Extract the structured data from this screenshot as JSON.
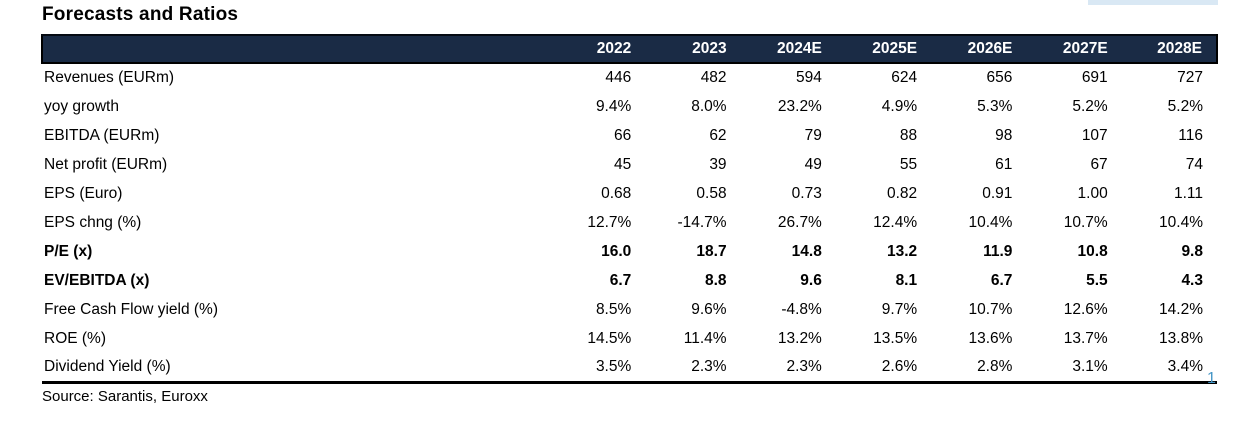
{
  "page": {
    "title": "Forecasts and Ratios",
    "source": "Source: Sarantis, Euroxx",
    "page_number": "1"
  },
  "colors": {
    "header_bg": "#1a2b45",
    "header_text": "#ffffff",
    "border_black": "#000000",
    "accent_strip": "#d9e8f4",
    "page_number_blue": "#4596c6"
  },
  "table": {
    "columns": [
      "2022",
      "2023",
      "2024E",
      "2025E",
      "2026E",
      "2027E",
      "2028E"
    ],
    "rows": [
      {
        "label": "Revenues (EURm)",
        "values": [
          "446",
          "482",
          "594",
          "624",
          "656",
          "691",
          "727"
        ],
        "bold": false
      },
      {
        "label": "yoy growth",
        "values": [
          "9.4%",
          "8.0%",
          "23.2%",
          "4.9%",
          "5.3%",
          "5.2%",
          "5.2%"
        ],
        "bold": false
      },
      {
        "label": "EBITDA (EURm)",
        "values": [
          "66",
          "62",
          "79",
          "88",
          "98",
          "107",
          "116"
        ],
        "bold": false
      },
      {
        "label": "Net profit (EURm)",
        "values": [
          "45",
          "39",
          "49",
          "55",
          "61",
          "67",
          "74"
        ],
        "bold": false
      },
      {
        "label": "EPS (Euro)",
        "values": [
          "0.68",
          "0.58",
          "0.73",
          "0.82",
          "0.91",
          "1.00",
          "1.11"
        ],
        "bold": false
      },
      {
        "label": "EPS chng (%)",
        "values": [
          "12.7%",
          "-14.7%",
          "26.7%",
          "12.4%",
          "10.4%",
          "10.7%",
          "10.4%"
        ],
        "bold": false
      },
      {
        "label": "P/E (x)",
        "values": [
          "16.0",
          "18.7",
          "14.8",
          "13.2",
          "11.9",
          "10.8",
          "9.8"
        ],
        "bold": true
      },
      {
        "label": "EV/EBITDA (x)",
        "values": [
          "6.7",
          "8.8",
          "9.6",
          "8.1",
          "6.7",
          "5.5",
          "4.3"
        ],
        "bold": true
      },
      {
        "label": "Free Cash Flow yield (%)",
        "values": [
          "8.5%",
          "9.6%",
          "-4.8%",
          "9.7%",
          "10.7%",
          "12.6%",
          "14.2%"
        ],
        "bold": false
      },
      {
        "label": "ROE (%)",
        "values": [
          "14.5%",
          "11.4%",
          "13.2%",
          "13.5%",
          "13.6%",
          "13.7%",
          "13.8%"
        ],
        "bold": false
      },
      {
        "label": "Dividend Yield (%)",
        "values": [
          "3.5%",
          "2.3%",
          "2.3%",
          "2.6%",
          "2.8%",
          "3.1%",
          "3.4%"
        ],
        "bold": false
      }
    ]
  }
}
